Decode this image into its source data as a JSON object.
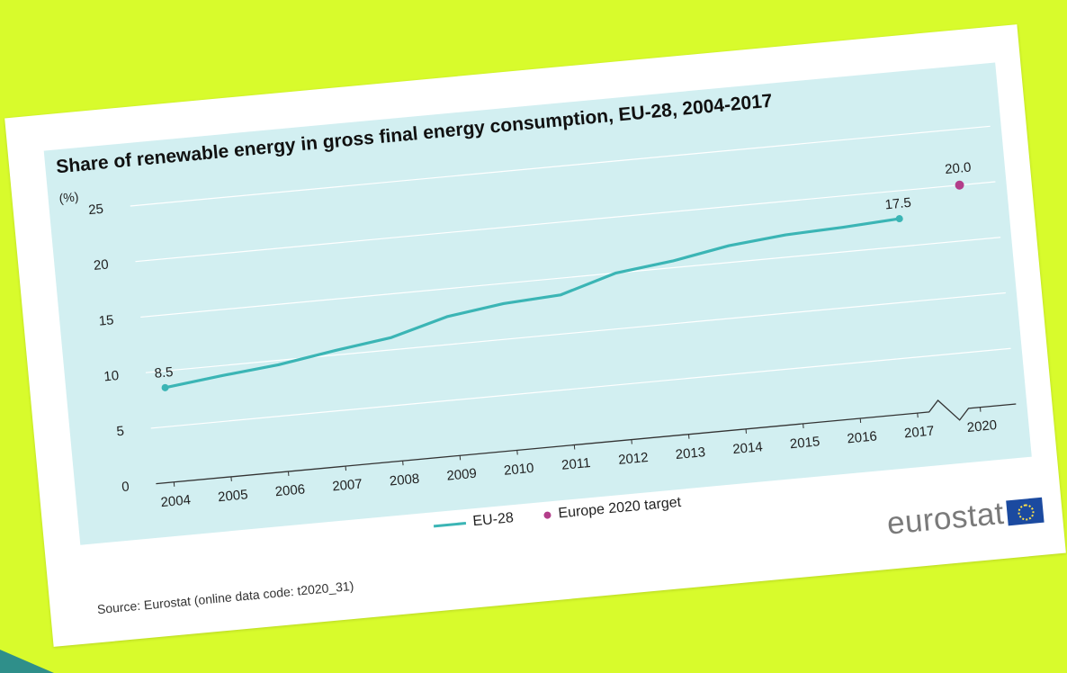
{
  "chart_data": {
    "type": "line",
    "title": "Share of renewable energy in gross final energy consumption, EU-28, 2004-2017",
    "ylabel": "(%)",
    "xlabel": "",
    "ylim": [
      0,
      25
    ],
    "y_ticks": [
      "0",
      "5",
      "10",
      "15",
      "20",
      "25"
    ],
    "x_ticks": [
      "2004",
      "2005",
      "2006",
      "2007",
      "2008",
      "2009",
      "2010",
      "2011",
      "2012",
      "2013",
      "2014",
      "2015",
      "2016",
      "2017",
      "2020"
    ],
    "axis_break": "between 2017 and 2020",
    "grid": true,
    "legend_placement": "bottom",
    "series": [
      {
        "name": "EU-28",
        "color": "#3bb5b5",
        "marker": "line",
        "x": [
          "2004",
          "2005",
          "2006",
          "2007",
          "2008",
          "2009",
          "2010",
          "2011",
          "2012",
          "2013",
          "2014",
          "2015",
          "2016",
          "2017"
        ],
        "values": [
          8.5,
          9.1,
          9.6,
          10.4,
          11.1,
          12.5,
          13.2,
          13.5,
          15.0,
          15.6,
          16.5,
          17.0,
          17.2,
          17.5
        ],
        "labels": {
          "2004": "8.5",
          "2017": "17.5"
        }
      },
      {
        "name": "Europe 2020 target",
        "color": "#b33e8a",
        "marker": "dot",
        "x": [
          "2020"
        ],
        "values": [
          20.0
        ],
        "labels": {
          "2020": "20.0"
        }
      }
    ]
  },
  "source_text": "Source: Eurostat (online data code: t2020_31)",
  "logo": {
    "text": "eurostat",
    "flag_icon": "eu-flag-icon",
    "color": "#7a7a7a"
  }
}
